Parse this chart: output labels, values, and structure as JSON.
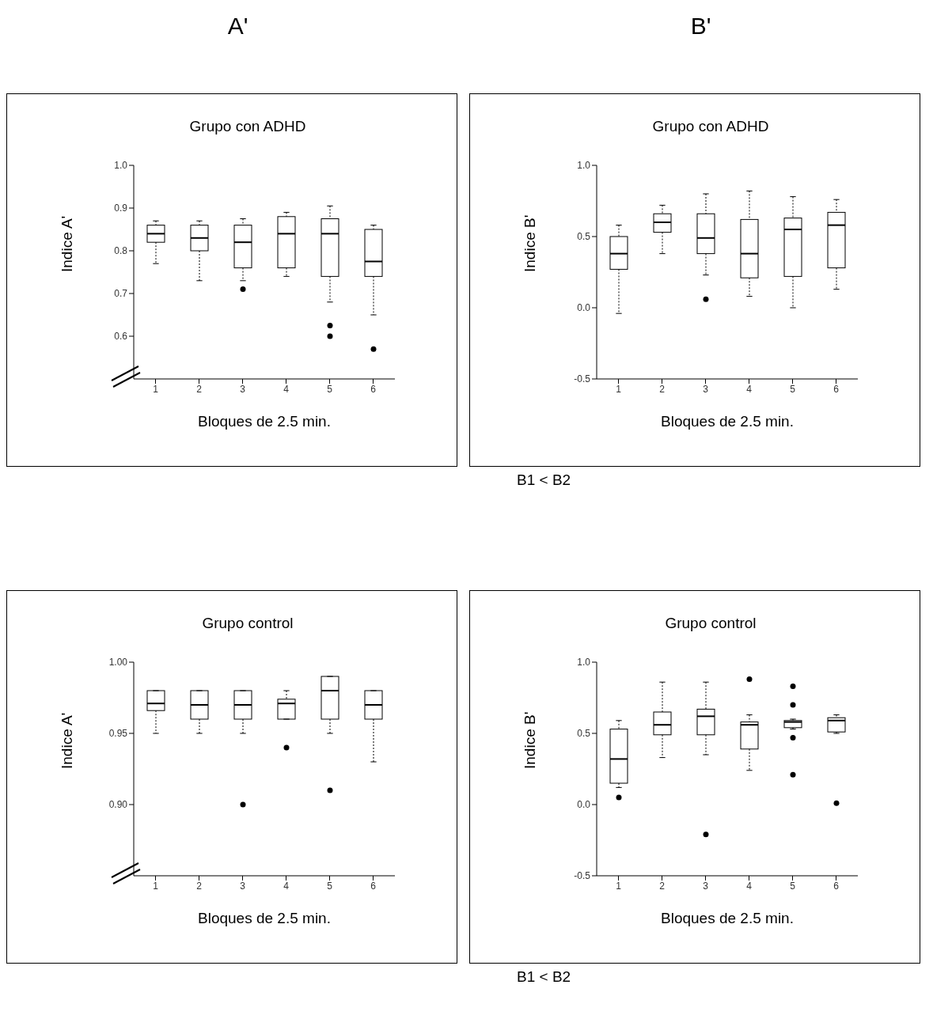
{
  "chart_data": [
    {
      "type": "box",
      "title": "A'",
      "subtitle": "Grupo con ADHD",
      "xlabel": "Bloques de 2.5 min.",
      "ylabel": "Indice A'",
      "categories": [
        "1",
        "2",
        "3",
        "4",
        "5",
        "6"
      ],
      "color": "#000000",
      "ylim": [
        0.5,
        1.0
      ],
      "yticks": [
        0.6,
        0.7,
        0.8,
        0.9,
        {
          "value": 1.0,
          "label": "1.0"
        }
      ],
      "boxes": [
        {
          "low": 0.77,
          "q1": 0.82,
          "median": 0.84,
          "q3": 0.86,
          "high": 0.87
        },
        {
          "low": 0.73,
          "q1": 0.8,
          "median": 0.83,
          "q3": 0.86,
          "high": 0.87
        },
        {
          "low": 0.73,
          "q1": 0.76,
          "median": 0.82,
          "q3": 0.86,
          "high": 0.875,
          "outliers": [
            0.71
          ]
        },
        {
          "low": 0.74,
          "q1": 0.76,
          "median": 0.84,
          "q3": 0.88,
          "high": 0.89
        },
        {
          "low": 0.68,
          "q1": 0.74,
          "median": 0.84,
          "q3": 0.875,
          "high": 0.905,
          "outliers": [
            0.625,
            0.6
          ]
        },
        {
          "low": 0.65,
          "q1": 0.74,
          "median": 0.775,
          "q3": 0.85,
          "high": 0.86,
          "outliers": [
            0.57
          ]
        }
      ]
    },
    {
      "type": "box",
      "title": "B'",
      "subtitle": "Grupo con ADHD",
      "xlabel": "Bloques de 2.5 min.",
      "ylabel": "Indice B'",
      "annotations": [
        "B1 < B2"
      ],
      "categories": [
        "1",
        "2",
        "3",
        "4",
        "5",
        "6"
      ],
      "color": "#000000",
      "ylim": [
        -0.5,
        1.0
      ],
      "yticks": [
        -0.5,
        {
          "value": 0.0,
          "label": "0.0"
        },
        0.5,
        {
          "value": 1.0,
          "label": "1.0"
        }
      ],
      "boxes": [
        {
          "low": -0.04,
          "q1": 0.27,
          "median": 0.38,
          "q3": 0.5,
          "high": 0.58
        },
        {
          "low": 0.38,
          "q1": 0.53,
          "median": 0.6,
          "q3": 0.66,
          "high": 0.72
        },
        {
          "low": 0.23,
          "q1": 0.38,
          "median": 0.49,
          "q3": 0.66,
          "high": 0.8,
          "outliers": [
            0.06
          ]
        },
        {
          "low": 0.08,
          "q1": 0.21,
          "median": 0.38,
          "q3": 0.62,
          "high": 0.82
        },
        {
          "low": 0.0,
          "q1": 0.22,
          "median": 0.55,
          "q3": 0.63,
          "high": 0.78
        },
        {
          "low": 0.13,
          "q1": 0.28,
          "median": 0.58,
          "q3": 0.67,
          "high": 0.76
        }
      ]
    },
    {
      "type": "box",
      "subtitle": "Grupo control",
      "xlabel": "Bloques de 2.5 min.",
      "ylabel": "Indice A'",
      "categories": [
        "1",
        "2",
        "3",
        "4",
        "5",
        "6"
      ],
      "color": "#000000",
      "ylim": [
        0.85,
        1.0
      ],
      "yticks": [
        {
          "value": 0.9,
          "label": "0.90"
        },
        {
          "value": 0.95,
          "label": "0.95"
        },
        {
          "value": 1.0,
          "label": "1.00"
        }
      ],
      "boxes": [
        {
          "low": 0.95,
          "q1": 0.966,
          "median": 0.971,
          "q3": 0.98,
          "high": 0.98
        },
        {
          "low": 0.95,
          "q1": 0.96,
          "median": 0.97,
          "q3": 0.98,
          "high": 0.98
        },
        {
          "low": 0.95,
          "q1": 0.96,
          "median": 0.97,
          "q3": 0.98,
          "high": 0.98,
          "outliers": [
            0.9
          ]
        },
        {
          "low": 0.96,
          "q1": 0.96,
          "median": 0.971,
          "q3": 0.974,
          "high": 0.98,
          "outliers": [
            0.94
          ]
        },
        {
          "low": 0.95,
          "q1": 0.96,
          "median": 0.98,
          "q3": 0.99,
          "high": 0.99,
          "outliers": [
            0.91
          ]
        },
        {
          "low": 0.93,
          "q1": 0.96,
          "median": 0.97,
          "q3": 0.98,
          "high": 0.98
        }
      ]
    },
    {
      "type": "box",
      "subtitle": "Grupo control",
      "xlabel": "Bloques de 2.5 min.",
      "ylabel": "Indice B'",
      "annotations": [
        "B1 < B2"
      ],
      "categories": [
        "1",
        "2",
        "3",
        "4",
        "5",
        "6"
      ],
      "color": "#000000",
      "ylim": [
        -0.5,
        1.0
      ],
      "yticks": [
        -0.5,
        {
          "value": 0.0,
          "label": "0.0"
        },
        0.5,
        {
          "value": 1.0,
          "label": "1.0"
        }
      ],
      "boxes": [
        {
          "low": 0.12,
          "q1": 0.15,
          "median": 0.32,
          "q3": 0.53,
          "high": 0.59,
          "outliers": [
            0.05
          ]
        },
        {
          "low": 0.33,
          "q1": 0.49,
          "median": 0.56,
          "q3": 0.65,
          "high": 0.86
        },
        {
          "low": 0.35,
          "q1": 0.49,
          "median": 0.62,
          "q3": 0.67,
          "high": 0.86,
          "outliers": [
            -0.21
          ]
        },
        {
          "low": 0.24,
          "q1": 0.39,
          "median": 0.56,
          "q3": 0.58,
          "high": 0.63,
          "outliers": [
            0.88
          ]
        },
        {
          "low": 0.53,
          "q1": 0.54,
          "median": 0.58,
          "q3": 0.59,
          "high": 0.6,
          "outliers": [
            0.83,
            0.7,
            0.47,
            0.21
          ]
        },
        {
          "low": 0.5,
          "q1": 0.51,
          "median": 0.59,
          "q3": 0.61,
          "high": 0.63,
          "outliers": [
            0.01
          ]
        }
      ]
    }
  ]
}
